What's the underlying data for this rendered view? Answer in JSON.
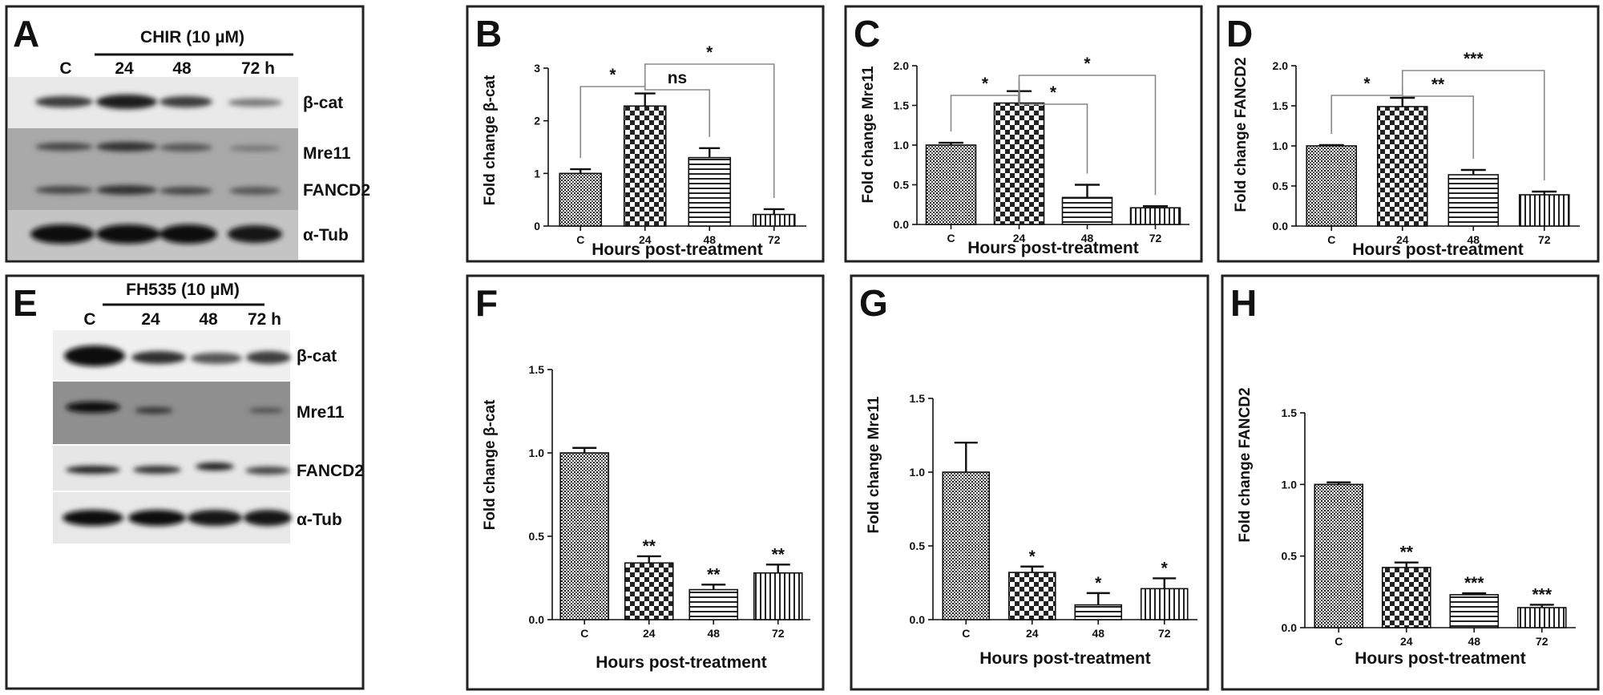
{
  "panels_blot": [
    {
      "letter": "A",
      "treatment": "CHIR (10 µM)",
      "lanes": [
        "C",
        "24",
        "48",
        "72 h"
      ],
      "proteins": [
        "β-cat",
        "Mre11",
        "FANCD2",
        "α-Tub"
      ],
      "colors": {
        "frame": "#222222",
        "band": "#151515"
      }
    },
    {
      "letter": "E",
      "treatment": "FH535 (10 µM)",
      "lanes": [
        "C",
        "24",
        "48",
        "72 h"
      ],
      "proteins": [
        "β-cat",
        "Mre11",
        "FANCD2",
        "α-Tub"
      ],
      "colors": {
        "frame": "#222222",
        "band": "#151515"
      }
    }
  ],
  "chart_data": [
    {
      "panel": "B",
      "type": "bar",
      "categories": [
        "C",
        "24",
        "48",
        "72"
      ],
      "values": [
        1.0,
        2.28,
        1.3,
        0.22
      ],
      "errors": [
        0.08,
        0.24,
        0.18,
        0.1
      ],
      "patterns": [
        "dense",
        "checker",
        "hlines",
        "vlines"
      ],
      "ylim": [
        0,
        3
      ],
      "yticks": [
        "0",
        "1",
        "2",
        "3"
      ],
      "xlabel": "Hours post-treatment",
      "ylabel": "Fold change β-cat",
      "brackets": [
        {
          "from": 0,
          "to": 1,
          "text": "*"
        },
        {
          "from": 1,
          "to": 2,
          "text": "ns"
        },
        {
          "from": 1,
          "to": 3,
          "text": "*"
        }
      ],
      "stars": [
        "",
        "",
        "",
        ""
      ]
    },
    {
      "panel": "C",
      "type": "bar",
      "categories": [
        "C",
        "24",
        "48",
        "72"
      ],
      "values": [
        1.0,
        1.53,
        0.34,
        0.21
      ],
      "errors": [
        0.03,
        0.15,
        0.16,
        0.02
      ],
      "patterns": [
        "dense",
        "checker",
        "hlines",
        "vlines"
      ],
      "ylim": [
        0,
        2
      ],
      "yticks": [
        "0.0",
        "0.5",
        "1.0",
        "1.5",
        "2.0"
      ],
      "xlabel": "Hours post-treatment",
      "ylabel": "Fold change Mre11",
      "brackets": [
        {
          "from": 0,
          "to": 1,
          "text": "*"
        },
        {
          "from": 1,
          "to": 2,
          "text": "*"
        },
        {
          "from": 1,
          "to": 3,
          "text": "*"
        }
      ],
      "stars": [
        "",
        "",
        "",
        ""
      ]
    },
    {
      "panel": "D",
      "type": "bar",
      "categories": [
        "C",
        "24",
        "48",
        "72"
      ],
      "values": [
        1.0,
        1.49,
        0.64,
        0.39
      ],
      "errors": [
        0.01,
        0.11,
        0.06,
        0.04
      ],
      "patterns": [
        "dense",
        "checker",
        "hlines",
        "vlines"
      ],
      "ylim": [
        0,
        2
      ],
      "yticks": [
        "0.0",
        "0.5",
        "1.0",
        "1.5",
        "2.0"
      ],
      "xlabel": "Hours post-treatment",
      "ylabel": "Fold change FANCD2",
      "brackets": [
        {
          "from": 0,
          "to": 1,
          "text": "*"
        },
        {
          "from": 1,
          "to": 2,
          "text": "**"
        },
        {
          "from": 1,
          "to": 3,
          "text": "***"
        }
      ],
      "stars": [
        "",
        "",
        "",
        ""
      ]
    },
    {
      "panel": "F",
      "type": "bar",
      "categories": [
        "C",
        "24",
        "48",
        "72"
      ],
      "values": [
        1.0,
        0.34,
        0.18,
        0.28
      ],
      "errors": [
        0.03,
        0.04,
        0.03,
        0.05
      ],
      "patterns": [
        "dense",
        "checker",
        "hlines",
        "vlines"
      ],
      "ylim": [
        0,
        1.5
      ],
      "yticks": [
        "0.0",
        "0.5",
        "1.0",
        "1.5"
      ],
      "xlabel": "Hours post-treatment",
      "ylabel": "Fold change β-cat",
      "brackets": [],
      "stars": [
        "",
        "**",
        "**",
        "**"
      ]
    },
    {
      "panel": "G",
      "type": "bar",
      "categories": [
        "C",
        "24",
        "48",
        "72"
      ],
      "values": [
        1.0,
        0.32,
        0.1,
        0.21
      ],
      "errors": [
        0.2,
        0.04,
        0.08,
        0.07
      ],
      "patterns": [
        "dense",
        "checker",
        "hlines",
        "vlines"
      ],
      "ylim": [
        0,
        1.5
      ],
      "yticks": [
        "0.0",
        "0.5",
        "1.0",
        "1.5"
      ],
      "xlabel": "Hours post-treatment",
      "ylabel": "Fold change Mre11",
      "brackets": [],
      "stars": [
        "",
        "*",
        "*",
        "*"
      ]
    },
    {
      "panel": "H",
      "type": "bar",
      "categories": [
        "C",
        "24",
        "48",
        "72"
      ],
      "values": [
        1.0,
        0.42,
        0.23,
        0.14
      ],
      "errors": [
        0.015,
        0.035,
        0.01,
        0.02
      ],
      "patterns": [
        "dense",
        "checker",
        "hlines",
        "vlines"
      ],
      "ylim": [
        0,
        1.5
      ],
      "yticks": [
        "0.0",
        "0.5",
        "1.0",
        "1.5"
      ],
      "xlabel": "Hours post-treatment",
      "ylabel": "Fold change FANCD2",
      "brackets": [],
      "stars": [
        "",
        "**",
        "***",
        "***"
      ]
    }
  ]
}
